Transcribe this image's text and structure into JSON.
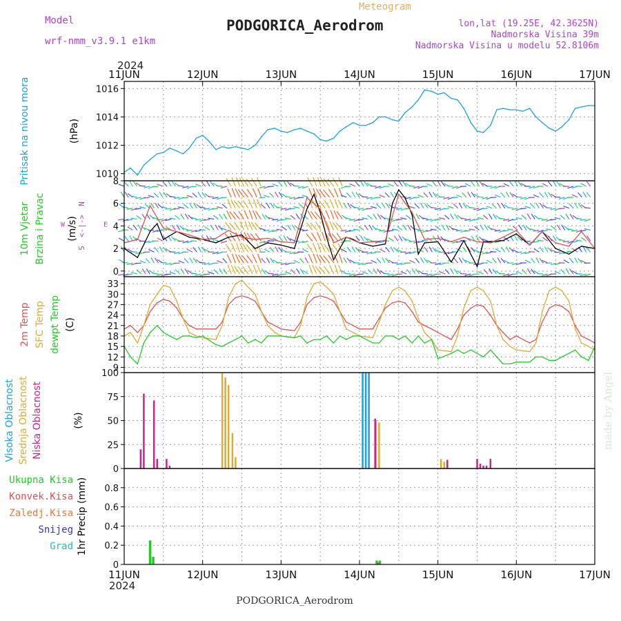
{
  "header": {
    "model_label": "Model",
    "model_name": "wrf-nmm_v3.9.1 e1km",
    "chart_kind": "Meteogram",
    "station": "PODGORICA_Aerodrom",
    "lonlat": "lon,lat (19.25E, 42.3625N)",
    "elevation": "Nadmorska Visina 39m",
    "model_elevation": "Nadmorska Visina u modelu 52.8106m",
    "footer_station": "PODGORICA_Aerodrom",
    "watermark": "made by Angel"
  },
  "chart_data": [
    {
      "id": "pressure",
      "type": "line",
      "year": "2024",
      "x_tick_labels": [
        "11JUN",
        "12JUN",
        "13JUN",
        "14JUN",
        "15JUN",
        "16JUN",
        "17JUN"
      ],
      "ylabel_lines": [
        {
          "text": "Pritisak na nivou mora",
          "color": "#1aa0e6"
        },
        {
          "text": "(hPa)",
          "color": "#000000"
        }
      ],
      "ylim": [
        1009.5,
        1016.5
      ],
      "y_ticks": [
        1010,
        1012,
        1014,
        1016
      ],
      "grid": true,
      "series": [
        {
          "color": "#1aa0e6",
          "x": [
            0,
            0.08,
            0.17,
            0.25,
            0.33,
            0.42,
            0.5,
            0.58,
            0.67,
            0.75,
            0.83,
            0.92,
            1,
            1.08,
            1.17,
            1.25,
            1.33,
            1.42,
            1.5,
            1.58,
            1.67,
            1.75,
            1.83,
            1.92,
            2,
            2.08,
            2.17,
            2.25,
            2.33,
            2.42,
            2.5,
            2.58,
            2.67,
            2.75,
            2.83,
            2.92,
            3,
            3.08,
            3.17,
            3.25,
            3.33,
            3.42,
            3.5,
            3.58,
            3.67,
            3.75,
            3.83,
            3.92,
            4,
            4.08,
            4.17,
            4.25,
            4.33,
            4.42,
            4.5,
            4.58,
            4.67,
            4.75,
            4.83,
            4.92,
            5,
            5.08,
            5.17,
            5.25,
            5.33,
            5.42,
            5.5,
            5.58,
            5.67,
            5.75,
            5.83,
            5.92,
            6
          ],
          "y": [
            1010.1,
            1010.4,
            1009.9,
            1010.6,
            1011.0,
            1011.4,
            1011.5,
            1011.8,
            1011.6,
            1011.4,
            1011.8,
            1012.5,
            1012.7,
            1012.3,
            1011.7,
            1011.9,
            1011.8,
            1011.9,
            1011.8,
            1011.7,
            1012.0,
            1012.6,
            1013.1,
            1013.2,
            1013.0,
            1012.9,
            1013.1,
            1013.2,
            1013.0,
            1012.8,
            1012.4,
            1012.3,
            1012.5,
            1013.0,
            1013.3,
            1013.6,
            1013.4,
            1013.4,
            1013.6,
            1014.0,
            1014.0,
            1013.8,
            1013.7,
            1014.3,
            1014.7,
            1015.2,
            1015.9,
            1015.8,
            1015.6,
            1015.7,
            1015.3,
            1015.2,
            1014.6,
            1013.6,
            1013.0,
            1012.9,
            1013.4,
            1014.5,
            1014.6,
            1014.5,
            1014.5,
            1014.4,
            1014.6,
            1014.0,
            1013.6,
            1013.2,
            1013.0,
            1013.3,
            1013.8,
            1014.6,
            1014.7,
            1014.8,
            1014.8
          ]
        }
      ]
    },
    {
      "id": "wind",
      "type": "line",
      "ylabel_lines": [
        {
          "text": "10m Vjetar",
          "color": "#22cc22"
        },
        {
          "text": "Brzina i Pravac",
          "color": "#22cc22"
        },
        {
          "text": "(m/s)",
          "color": "#000000"
        }
      ],
      "direction_legend": {
        "n": "N",
        "s": "S",
        "e": "E",
        "w": "W",
        "arrows": "<-|->",
        "color": "#aa44cc"
      },
      "ylim": [
        -0.5,
        8
      ],
      "y_ticks": [
        0,
        2,
        4,
        6,
        8
      ],
      "grid": true,
      "barb_colors": [
        "#3355ee",
        "#22aadd",
        "#22ccaa",
        "#22cc44",
        "#aa44cc",
        "#ee6622",
        "#ddaa22"
      ],
      "series": [
        {
          "name": "speed",
          "color": "#000000",
          "x": [
            0,
            0.17,
            0.33,
            0.42,
            0.5,
            0.67,
            0.83,
            1,
            1.17,
            1.33,
            1.5,
            1.67,
            1.83,
            2,
            2.17,
            2.33,
            2.42,
            2.5,
            2.58,
            2.67,
            2.75,
            2.83,
            2.92,
            3,
            3.17,
            3.33,
            3.42,
            3.5,
            3.58,
            3.67,
            3.75,
            3.83,
            4,
            4.17,
            4.33,
            4.5,
            4.58,
            4.67,
            4.83,
            5,
            5.17,
            5.33,
            5.5,
            5.67,
            5.83,
            6
          ],
          "y": [
            2.0,
            1.2,
            3.5,
            4.2,
            2.8,
            3.5,
            3.0,
            2.8,
            2.5,
            3.0,
            3.2,
            2.0,
            2.5,
            2.3,
            2.0,
            5.5,
            6.8,
            5.2,
            3.0,
            1.0,
            2.0,
            3.0,
            2.8,
            2.5,
            2.2,
            2.4,
            6.0,
            7.2,
            6.5,
            5.0,
            1.5,
            2.5,
            2.6,
            0.8,
            2.7,
            0.4,
            2.6,
            2.6,
            2.7,
            3.3,
            2.3,
            3.5,
            2.0,
            1.5,
            2.2,
            2.0
          ]
        },
        {
          "name": "gust",
          "color": "#e05050",
          "x": [
            0,
            0.17,
            0.33,
            0.5,
            0.67,
            0.83,
            1,
            1.17,
            1.33,
            1.5,
            1.67,
            1.83,
            2,
            2.17,
            2.33,
            2.5,
            2.67,
            2.83,
            3,
            3.17,
            3.33,
            3.5,
            3.67,
            3.83,
            4,
            4.17,
            4.33,
            4.5,
            4.67,
            4.83,
            5,
            5.17,
            5.33,
            5.5,
            5.67,
            5.83,
            6
          ],
          "y": [
            2.5,
            2.8,
            5.8,
            3.8,
            3.5,
            3.2,
            2.8,
            2.9,
            3.6,
            3.0,
            2.8,
            2.9,
            2.6,
            2.5,
            6.5,
            5.5,
            2.5,
            3.0,
            2.5,
            2.6,
            2.7,
            6.8,
            5.2,
            2.8,
            2.9,
            2.6,
            3.0,
            2.6,
            2.5,
            3.0,
            3.6,
            2.3,
            3.5,
            2.5,
            2.2,
            3.5,
            2.0
          ]
        }
      ]
    },
    {
      "id": "temperature",
      "type": "line",
      "ylabel_lines": [
        {
          "text": "2m Temp",
          "color": "#e05050"
        },
        {
          "text": "SFC Temp",
          "color": "#ddaa33"
        },
        {
          "text": "dewpt Temp",
          "color": "#22cc22"
        },
        {
          "text": "(C)",
          "color": "#000000"
        }
      ],
      "ylim": [
        7.5,
        35
      ],
      "y_ticks": [
        9,
        12,
        15,
        18,
        21,
        24,
        27,
        30,
        33
      ],
      "grid": true,
      "series": [
        {
          "name": "2m Temp",
          "color": "#e05050",
          "x": [
            0,
            0.08,
            0.17,
            0.25,
            0.33,
            0.42,
            0.5,
            0.58,
            0.67,
            0.75,
            0.83,
            0.92,
            1,
            1.17,
            1.25,
            1.33,
            1.42,
            1.5,
            1.58,
            1.67,
            1.75,
            1.83,
            1.92,
            2,
            2.17,
            2.25,
            2.33,
            2.42,
            2.5,
            2.58,
            2.67,
            2.75,
            2.83,
            2.92,
            3,
            3.17,
            3.25,
            3.33,
            3.42,
            3.5,
            3.58,
            3.67,
            3.75,
            3.83,
            3.92,
            4,
            4.17,
            4.25,
            4.33,
            4.42,
            4.5,
            4.58,
            4.67,
            4.75,
            4.83,
            4.92,
            5,
            5.17,
            5.25,
            5.33,
            5.42,
            5.5,
            5.58,
            5.67,
            5.75,
            5.83,
            5.92,
            6
          ],
          "y": [
            20,
            21,
            19,
            21,
            25,
            27.5,
            28.5,
            28,
            26,
            23,
            21,
            20,
            20,
            20,
            22,
            27,
            29,
            29.5,
            29,
            28,
            25,
            22,
            21,
            20,
            19.5,
            22,
            27,
            29,
            29.5,
            29,
            28,
            25,
            22,
            21,
            20,
            20,
            23,
            26,
            27.5,
            28,
            27.5,
            25,
            22,
            21,
            20,
            19,
            17,
            20,
            24,
            26,
            27,
            26.5,
            24,
            21,
            19,
            17,
            18,
            16,
            17,
            22,
            26,
            27,
            26.5,
            25,
            21,
            18,
            17,
            16
          ]
        },
        {
          "name": "SFC Temp",
          "color": "#ddaa33",
          "x": [
            0,
            0.08,
            0.17,
            0.25,
            0.33,
            0.42,
            0.5,
            0.58,
            0.67,
            0.75,
            0.83,
            0.92,
            1,
            1.17,
            1.25,
            1.33,
            1.42,
            1.5,
            1.58,
            1.67,
            1.75,
            1.83,
            1.92,
            2,
            2.17,
            2.25,
            2.33,
            2.42,
            2.5,
            2.58,
            2.67,
            2.75,
            2.83,
            2.92,
            3,
            3.17,
            3.25,
            3.33,
            3.42,
            3.5,
            3.58,
            3.67,
            3.75,
            3.83,
            3.92,
            4,
            4.17,
            4.25,
            4.33,
            4.42,
            4.5,
            4.58,
            4.67,
            4.75,
            4.83,
            4.92,
            5,
            5.17,
            5.25,
            5.33,
            5.42,
            5.5,
            5.58,
            5.67,
            5.75,
            5.83,
            5.92,
            6
          ],
          "y": [
            18,
            19,
            16,
            21,
            27,
            30,
            32.5,
            32,
            28,
            23,
            19,
            18,
            17.5,
            17,
            21,
            29,
            33,
            34,
            32,
            30,
            25,
            21,
            19,
            18,
            17.5,
            21,
            29,
            33,
            33.5,
            32,
            30,
            25,
            20,
            19,
            18,
            17.5,
            22,
            27,
            31,
            32,
            31,
            28,
            23,
            19,
            17,
            14,
            13.5,
            18,
            26,
            31,
            32,
            31,
            28,
            21,
            17,
            15,
            14,
            13.5,
            16,
            25,
            31,
            32,
            31,
            28,
            20,
            16,
            15,
            14
          ]
        },
        {
          "name": "dewpt Temp",
          "color": "#22cc22",
          "x": [
            0,
            0.08,
            0.17,
            0.25,
            0.33,
            0.42,
            0.5,
            0.58,
            0.67,
            0.75,
            0.83,
            0.92,
            1,
            1.17,
            1.25,
            1.33,
            1.42,
            1.5,
            1.58,
            1.67,
            1.75,
            1.83,
            1.92,
            2,
            2.17,
            2.25,
            2.33,
            2.42,
            2.5,
            2.58,
            2.67,
            2.75,
            2.83,
            2.92,
            3,
            3.17,
            3.25,
            3.33,
            3.42,
            3.5,
            3.58,
            3.67,
            3.75,
            3.83,
            3.92,
            4,
            4.17,
            4.25,
            4.33,
            4.42,
            4.5,
            4.58,
            4.67,
            4.75,
            4.83,
            4.92,
            5,
            5.17,
            5.25,
            5.33,
            5.42,
            5.5,
            5.58,
            5.67,
            5.75,
            5.83,
            5.92,
            6
          ],
          "y": [
            15,
            12,
            10,
            16,
            19,
            21,
            19,
            18,
            17,
            18,
            18,
            17.5,
            18,
            15.5,
            15,
            16,
            17,
            18,
            16,
            17,
            16,
            18,
            18,
            18,
            17.5,
            18,
            16,
            17,
            17,
            18,
            16,
            18,
            17,
            18,
            18,
            16,
            16,
            18,
            18,
            17,
            18,
            16,
            18,
            16,
            17,
            11.5,
            13,
            14,
            13,
            14,
            13,
            12,
            14,
            12,
            10,
            10,
            10.5,
            10.5,
            12,
            12,
            11,
            11,
            12,
            13,
            14,
            12,
            11,
            15
          ]
        }
      ]
    },
    {
      "id": "cloud",
      "type": "bar",
      "ylabel_lines": [
        {
          "text": "Visoka Oblacnost",
          "color": "#1aa0e6"
        },
        {
          "text": "Srednja Oblacnost",
          "color": "#ddaa33"
        },
        {
          "text": "Niska Oblacnost",
          "color": "#cc2288"
        },
        {
          "text": "(%)",
          "color": "#000000"
        }
      ],
      "ylim": [
        0,
        100
      ],
      "y_ticks": [
        0,
        25,
        50,
        75,
        100
      ],
      "grid": true,
      "series": [
        {
          "name": "Visoka Oblacnost",
          "color": "#1aa0e6",
          "x": [
            3.04,
            3.08,
            3.12
          ],
          "y": [
            100,
            100,
            100
          ]
        },
        {
          "name": "Srednja Oblacnost",
          "color": "#ddaa33",
          "x": [
            1.25,
            1.29,
            1.33,
            1.38,
            1.42,
            3.21,
            3.25,
            4.04,
            4.08,
            4.12
          ],
          "y": [
            100,
            95,
            87,
            37,
            12,
            50,
            48,
            10,
            7,
            9
          ]
        },
        {
          "name": "Niska Oblacnost",
          "color": "#cc2288",
          "x": [
            0.21,
            0.25,
            0.29,
            0.38,
            0.42,
            0.54,
            0.58,
            3.2,
            4.12,
            4.5,
            4.54,
            4.58,
            4.62,
            4.67
          ],
          "y": [
            20,
            78,
            0,
            71,
            10,
            10,
            3,
            52,
            9,
            10,
            5,
            3,
            3,
            10
          ]
        }
      ]
    },
    {
      "id": "precip",
      "type": "bar",
      "ylabel_lines": [
        {
          "text": "1hr Precip (mm)",
          "color": "#000000"
        }
      ],
      "legend": [
        {
          "name": "Ukupna Kisa",
          "color": "#22cc22"
        },
        {
          "name": "Konvek.Kisa",
          "color": "#e05050"
        },
        {
          "name": "Zaledj.Kisa",
          "color": "#ee7733"
        },
        {
          "name": "Snijeg",
          "color": "#3333dd"
        },
        {
          "name": "Grad",
          "color": "#22bbbb"
        }
      ],
      "ylim": [
        0,
        1
      ],
      "y_ticks": [
        0,
        0.2,
        0.4,
        0.6,
        0.8
      ],
      "y_tick_labels": [
        "0",
        "0.2",
        "0.4",
        "0.6",
        "0.8"
      ],
      "grid": true,
      "series": [
        {
          "name": "Ukupna Kisa",
          "color": "#22cc22",
          "x": [
            0.33,
            0.37,
            3.22,
            3.26
          ],
          "y": [
            0.25,
            0.08,
            0.04,
            0.04
          ]
        },
        {
          "name": "Konvek.Kisa",
          "color": "#e05050",
          "x": [
            3.24
          ],
          "y": [
            0.02
          ]
        }
      ]
    }
  ]
}
